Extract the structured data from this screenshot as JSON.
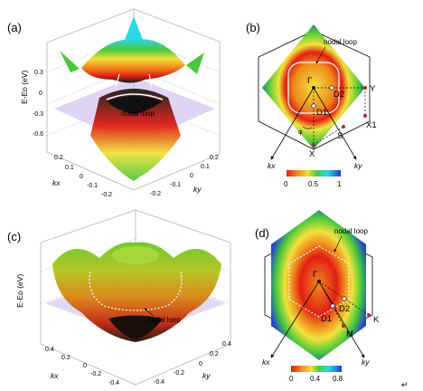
{
  "figure": {
    "panels": {
      "a": {
        "label": "(a)",
        "z_axis_label": "E-Eᴅ (eV)",
        "z_ticks": [
          "0.3",
          "0",
          "-0.3",
          "-0.6"
        ],
        "kx_label": "kx",
        "ky_label": "ky",
        "kx_ticks": [
          "0.2",
          "0.1",
          "0",
          "-0.1",
          "-0.2"
        ],
        "ky_ticks": [
          "-0.2",
          "-0.1",
          "0",
          "0.1",
          "0.2"
        ],
        "annotation": "nodal loop"
      },
      "b": {
        "label": "(b)",
        "annotation": "nodal loop",
        "points": [
          "Γ",
          "D2",
          "D1",
          "Y",
          "X",
          "X1",
          "S"
        ],
        "angle_label": "φ",
        "kx_label": "kx",
        "ky_label": "ky",
        "colorbar_ticks": [
          "0",
          "0.5",
          "1"
        ]
      },
      "c": {
        "label": "(c)",
        "z_axis_label": "E-Eᴅ (eV)",
        "kx_label": "kx",
        "ky_label": "ky",
        "kx_ticks": [
          "0.4",
          "0.2",
          "0",
          "-0.2",
          "-0.4"
        ],
        "ky_ticks": [
          "-0.4",
          "-0.2",
          "0",
          "0.2",
          "0.4"
        ],
        "annotation": "nodal loop"
      },
      "d": {
        "label": "(d)",
        "annotation": "nodal loop",
        "points": [
          "Γ",
          "D2",
          "D1",
          "K",
          "M"
        ],
        "kx_label": "kx",
        "ky_label": "ky",
        "colorbar_ticks": [
          "0",
          "0.4",
          "0.8"
        ]
      }
    },
    "corner_mark": "↵",
    "colors": {
      "jet_blue": "#1f3bd6",
      "jet_cyan": "#2bd7e8",
      "jet_green": "#49c93a",
      "jet_yellow": "#f1e23b",
      "jet_orange": "#f08a1d",
      "jet_red": "#e11f14",
      "plane": "#c9b8ec",
      "point_red": "#c0202a"
    }
  }
}
